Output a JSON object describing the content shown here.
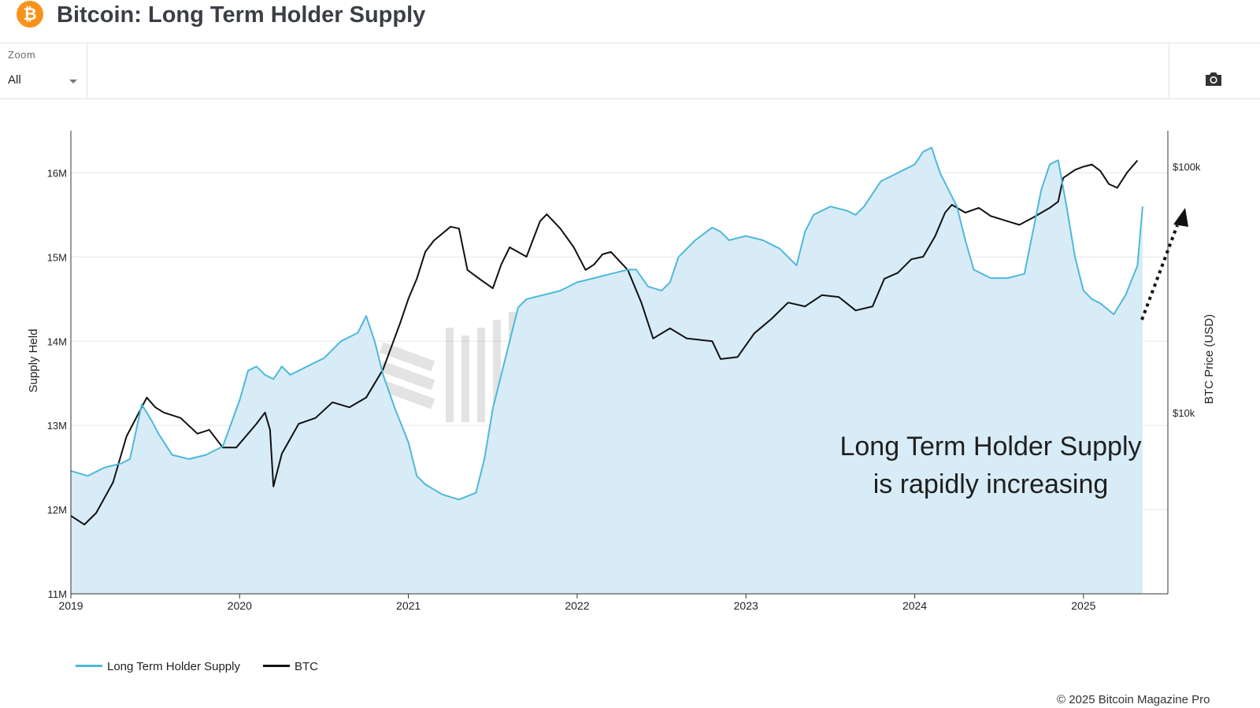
{
  "page": {
    "title": "Bitcoin: Long Term Holder Supply",
    "logo_glyph": "₿",
    "toolbar": {
      "zoom_label": "Zoom",
      "zoom_value": "All"
    },
    "copyright": "© 2025 Bitcoin Magazine Pro"
  },
  "colors": {
    "lth": "#4fb8da",
    "lth_fill": "#d8ecf7",
    "btc": "#111111",
    "accent": "#f7931a"
  },
  "chart_data": {
    "type": "line",
    "x_axis": {
      "range": [
        2019.0,
        2025.5
      ],
      "ticks": [
        "2019",
        "2020",
        "2021",
        "2022",
        "2023",
        "2024",
        "2025"
      ]
    },
    "y_left": {
      "label": "Supply Held",
      "range": [
        11000000,
        16500000
      ],
      "ticks": [
        "11M",
        "12M",
        "13M",
        "14M",
        "15M",
        "16M"
      ]
    },
    "y_right": {
      "label": "BTC Price (USD)",
      "scale": "log",
      "range_usd": [
        1830,
        140000
      ],
      "ticks": [
        "$10k",
        "$100k"
      ]
    },
    "watermark": "BITCOIN MAGAZINE PRO",
    "annotation": {
      "lines": [
        "Long Term Holder Supply",
        "is rapidly increasing"
      ],
      "arrow": "dotted arrow pointing up-right near end of 2025"
    },
    "series": [
      {
        "name": "Long Term Holder Supply",
        "axis": "left",
        "points": [
          [
            2019.0,
            12.46
          ],
          [
            2019.1,
            12.4
          ],
          [
            2019.2,
            12.5
          ],
          [
            2019.3,
            12.55
          ],
          [
            2019.35,
            12.6
          ],
          [
            2019.42,
            13.25
          ],
          [
            2019.48,
            13.05
          ],
          [
            2019.52,
            12.9
          ],
          [
            2019.6,
            12.65
          ],
          [
            2019.7,
            12.6
          ],
          [
            2019.8,
            12.65
          ],
          [
            2019.9,
            12.75
          ],
          [
            2020.0,
            13.3
          ],
          [
            2020.05,
            13.65
          ],
          [
            2020.1,
            13.7
          ],
          [
            2020.15,
            13.6
          ],
          [
            2020.2,
            13.55
          ],
          [
            2020.25,
            13.7
          ],
          [
            2020.3,
            13.6
          ],
          [
            2020.4,
            13.7
          ],
          [
            2020.5,
            13.8
          ],
          [
            2020.6,
            14.0
          ],
          [
            2020.7,
            14.1
          ],
          [
            2020.75,
            14.3
          ],
          [
            2020.8,
            14.0
          ],
          [
            2020.85,
            13.6
          ],
          [
            2020.92,
            13.2
          ],
          [
            2021.0,
            12.8
          ],
          [
            2021.05,
            12.4
          ],
          [
            2021.1,
            12.3
          ],
          [
            2021.2,
            12.18
          ],
          [
            2021.3,
            12.12
          ],
          [
            2021.4,
            12.2
          ],
          [
            2021.45,
            12.6
          ],
          [
            2021.5,
            13.2
          ],
          [
            2021.55,
            13.6
          ],
          [
            2021.6,
            14.0
          ],
          [
            2021.65,
            14.4
          ],
          [
            2021.7,
            14.5
          ],
          [
            2021.8,
            14.55
          ],
          [
            2021.9,
            14.6
          ],
          [
            2022.0,
            14.7
          ],
          [
            2022.1,
            14.75
          ],
          [
            2022.2,
            14.8
          ],
          [
            2022.3,
            14.85
          ],
          [
            2022.35,
            14.85
          ],
          [
            2022.42,
            14.65
          ],
          [
            2022.5,
            14.6
          ],
          [
            2022.55,
            14.7
          ],
          [
            2022.6,
            15.0
          ],
          [
            2022.7,
            15.2
          ],
          [
            2022.8,
            15.35
          ],
          [
            2022.85,
            15.3
          ],
          [
            2022.9,
            15.2
          ],
          [
            2023.0,
            15.25
          ],
          [
            2023.1,
            15.2
          ],
          [
            2023.2,
            15.1
          ],
          [
            2023.25,
            15.0
          ],
          [
            2023.3,
            14.9
          ],
          [
            2023.35,
            15.3
          ],
          [
            2023.4,
            15.5
          ],
          [
            2023.5,
            15.6
          ],
          [
            2023.6,
            15.55
          ],
          [
            2023.65,
            15.5
          ],
          [
            2023.7,
            15.6
          ],
          [
            2023.8,
            15.9
          ],
          [
            2023.9,
            16.0
          ],
          [
            2024.0,
            16.1
          ],
          [
            2024.05,
            16.25
          ],
          [
            2024.1,
            16.3
          ],
          [
            2024.15,
            16.0
          ],
          [
            2024.2,
            15.8
          ],
          [
            2024.25,
            15.6
          ],
          [
            2024.3,
            15.2
          ],
          [
            2024.35,
            14.85
          ],
          [
            2024.45,
            14.75
          ],
          [
            2024.55,
            14.75
          ],
          [
            2024.65,
            14.8
          ],
          [
            2024.7,
            15.3
          ],
          [
            2024.75,
            15.8
          ],
          [
            2024.8,
            16.1
          ],
          [
            2024.85,
            16.15
          ],
          [
            2024.9,
            15.6
          ],
          [
            2024.95,
            15.0
          ],
          [
            2025.0,
            14.6
          ],
          [
            2025.05,
            14.5
          ],
          [
            2025.1,
            14.45
          ],
          [
            2025.18,
            14.32
          ],
          [
            2025.25,
            14.55
          ],
          [
            2025.32,
            14.9
          ],
          [
            2025.35,
            15.6
          ]
        ]
      },
      {
        "name": "BTC",
        "axis": "right",
        "points": [
          [
            2019.0,
            3800
          ],
          [
            2019.08,
            3500
          ],
          [
            2019.15,
            3900
          ],
          [
            2019.25,
            5200
          ],
          [
            2019.33,
            8000
          ],
          [
            2019.45,
            11500
          ],
          [
            2019.5,
            10500
          ],
          [
            2019.55,
            10000
          ],
          [
            2019.65,
            9500
          ],
          [
            2019.75,
            8200
          ],
          [
            2019.82,
            8500
          ],
          [
            2019.9,
            7200
          ],
          [
            2019.98,
            7200
          ],
          [
            2020.1,
            9000
          ],
          [
            2020.15,
            10000
          ],
          [
            2020.18,
            8500
          ],
          [
            2020.2,
            5000
          ],
          [
            2020.25,
            6800
          ],
          [
            2020.35,
            9000
          ],
          [
            2020.45,
            9500
          ],
          [
            2020.55,
            11000
          ],
          [
            2020.65,
            10500
          ],
          [
            2020.75,
            11500
          ],
          [
            2020.85,
            15000
          ],
          [
            2020.95,
            23000
          ],
          [
            2021.0,
            29000
          ],
          [
            2021.05,
            35000
          ],
          [
            2021.1,
            45000
          ],
          [
            2021.15,
            50000
          ],
          [
            2021.25,
            57000
          ],
          [
            2021.3,
            56000
          ],
          [
            2021.35,
            38000
          ],
          [
            2021.42,
            35000
          ],
          [
            2021.5,
            32000
          ],
          [
            2021.55,
            40000
          ],
          [
            2021.6,
            47000
          ],
          [
            2021.7,
            43000
          ],
          [
            2021.78,
            60000
          ],
          [
            2021.82,
            64000
          ],
          [
            2021.9,
            56000
          ],
          [
            2021.98,
            47000
          ],
          [
            2022.05,
            38000
          ],
          [
            2022.1,
            40000
          ],
          [
            2022.15,
            44000
          ],
          [
            2022.2,
            45000
          ],
          [
            2022.3,
            38000
          ],
          [
            2022.38,
            28000
          ],
          [
            2022.45,
            20000
          ],
          [
            2022.55,
            22000
          ],
          [
            2022.65,
            20000
          ],
          [
            2022.8,
            19500
          ],
          [
            2022.85,
            16500
          ],
          [
            2022.95,
            16800
          ],
          [
            2023.05,
            21000
          ],
          [
            2023.15,
            24000
          ],
          [
            2023.25,
            28000
          ],
          [
            2023.35,
            27000
          ],
          [
            2023.45,
            30000
          ],
          [
            2023.55,
            29500
          ],
          [
            2023.65,
            26000
          ],
          [
            2023.75,
            27000
          ],
          [
            2023.82,
            35000
          ],
          [
            2023.9,
            37000
          ],
          [
            2023.98,
            42000
          ],
          [
            2024.05,
            43000
          ],
          [
            2024.12,
            52000
          ],
          [
            2024.18,
            65000
          ],
          [
            2024.22,
            70000
          ],
          [
            2024.3,
            65000
          ],
          [
            2024.38,
            68000
          ],
          [
            2024.45,
            63000
          ],
          [
            2024.55,
            60000
          ],
          [
            2024.62,
            58000
          ],
          [
            2024.7,
            62000
          ],
          [
            2024.8,
            68000
          ],
          [
            2024.85,
            72000
          ],
          [
            2024.88,
            90000
          ],
          [
            2024.95,
            97000
          ],
          [
            2025.0,
            100000
          ],
          [
            2025.05,
            102000
          ],
          [
            2025.1,
            96000
          ],
          [
            2025.15,
            85000
          ],
          [
            2025.2,
            82000
          ],
          [
            2025.26,
            95000
          ],
          [
            2025.32,
            106000
          ]
        ]
      }
    ]
  }
}
